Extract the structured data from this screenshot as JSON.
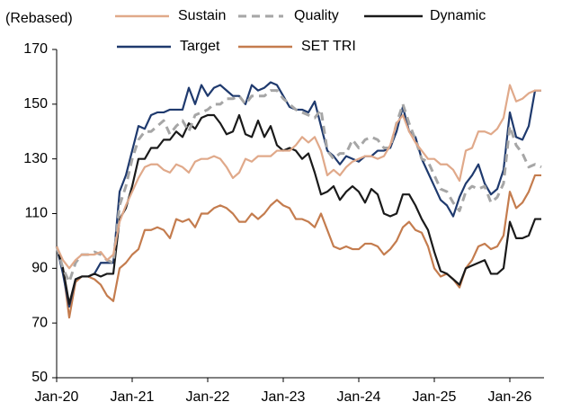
{
  "chart_data": {
    "type": "line",
    "y_axis_label": "(Rebased)",
    "legend": "top",
    "categories": [
      "Jan-20",
      null,
      null,
      null,
      null,
      null,
      null,
      null,
      null,
      null,
      null,
      null,
      "Jan-21",
      null,
      null,
      null,
      null,
      null,
      null,
      null,
      null,
      null,
      null,
      null,
      "Jan-22",
      null,
      null,
      null,
      null,
      null,
      null,
      null,
      null,
      null,
      null,
      null,
      "Jan-23",
      null,
      null,
      null,
      null,
      null,
      null,
      null,
      null,
      null,
      null,
      null,
      "Jan-24",
      null,
      null,
      null,
      null,
      null,
      null,
      null,
      null,
      null,
      null,
      null,
      "Jan-25",
      null,
      null,
      null,
      null,
      null,
      null,
      null,
      null,
      null,
      null,
      null,
      "Jan-26",
      null,
      null,
      null,
      null,
      null
    ],
    "ylim": [
      50,
      170
    ],
    "yticks": [
      50,
      70,
      90,
      110,
      130,
      150,
      170
    ],
    "grid": false,
    "series": [
      {
        "name": "Sustain",
        "color": "#e0a98a",
        "dash": "solid",
        "values": [
          98,
          93,
          90,
          93,
          95,
          95,
          95,
          96,
          93,
          95,
          107,
          113,
          118,
          123,
          127,
          128,
          128,
          126,
          125,
          128,
          127,
          125,
          129,
          130,
          130,
          131,
          130,
          127,
          123,
          125,
          130,
          129,
          131,
          131,
          131,
          133,
          133,
          133,
          135,
          138,
          136,
          138,
          133,
          124,
          126,
          124,
          127,
          129,
          130,
          131,
          131,
          130,
          131,
          135,
          143,
          146,
          140,
          136,
          133,
          130,
          130,
          128,
          128,
          126,
          122,
          133,
          134,
          140,
          140,
          139,
          141,
          145,
          157,
          151,
          152,
          154,
          155,
          155
        ]
      },
      {
        "name": "Quality",
        "color": "#a6a6a6",
        "dash": "dashed",
        "values": [
          98,
          90,
          85,
          92,
          95,
          95,
          96,
          95,
          93,
          92,
          113,
          120,
          130,
          137,
          140,
          140,
          142,
          144,
          139,
          142,
          144,
          140,
          146,
          147,
          148,
          150,
          150,
          152,
          152,
          153,
          150,
          153,
          153,
          153,
          155,
          155,
          152,
          150,
          148,
          147,
          146,
          145,
          148,
          133,
          130,
          132,
          132,
          137,
          134,
          137,
          138,
          137,
          134,
          134,
          143,
          150,
          143,
          137,
          130,
          129,
          124,
          119,
          118,
          114,
          111,
          118,
          120,
          119,
          120,
          114,
          116,
          121,
          142,
          135,
          132,
          127,
          128,
          127
        ]
      },
      {
        "name": "Dynamic",
        "color": "#1a1a1a",
        "dash": "solid",
        "values": [
          98,
          90,
          77,
          86,
          87,
          87,
          88,
          87,
          88,
          88,
          108,
          112,
          120,
          130,
          130,
          134,
          134,
          137,
          137,
          140,
          138,
          143,
          141,
          145,
          146,
          146,
          143,
          139,
          140,
          146,
          139,
          138,
          144,
          138,
          142,
          135,
          133,
          134,
          133,
          130,
          132,
          125,
          117,
          118,
          120,
          115,
          118,
          120,
          118,
          114,
          119,
          117,
          110,
          109,
          110,
          117,
          117,
          113,
          108,
          104,
          96,
          89,
          88,
          86,
          84,
          90,
          91,
          92,
          93,
          88,
          88,
          90,
          107,
          101,
          101,
          102,
          108,
          108
        ]
      },
      {
        "name": "Target",
        "color": "#1f3a6e",
        "dash": "solid",
        "values": [
          98,
          88,
          76,
          86,
          87,
          87,
          88,
          92,
          92,
          92,
          118,
          124,
          133,
          142,
          141,
          146,
          147,
          147,
          148,
          148,
          148,
          156,
          150,
          157,
          153,
          156,
          157,
          155,
          153,
          153,
          150,
          157,
          155,
          156,
          158,
          157,
          153,
          149,
          148,
          148,
          147,
          151,
          142,
          133,
          131,
          128,
          131,
          130,
          129,
          131,
          131,
          133,
          133,
          134,
          140,
          149,
          140,
          138,
          130,
          125,
          120,
          115,
          113,
          109,
          116,
          121,
          124,
          128,
          121,
          117,
          119,
          126,
          147,
          138,
          137,
          142,
          155,
          155
        ]
      },
      {
        "name": "SET TRI",
        "color": "#c47c4e",
        "dash": "solid",
        "values": [
          98,
          90,
          72,
          85,
          87,
          87,
          86,
          84,
          80,
          78,
          90,
          92,
          95,
          97,
          104,
          104,
          105,
          104,
          101,
          108,
          107,
          108,
          105,
          110,
          110,
          112,
          113,
          112,
          110,
          107,
          107,
          110,
          108,
          110,
          113,
          115,
          113,
          112,
          108,
          108,
          107,
          105,
          110,
          104,
          98,
          97,
          98,
          97,
          97,
          99,
          99,
          98,
          95,
          97,
          100,
          105,
          107,
          104,
          103,
          98,
          90,
          87,
          88,
          86,
          83,
          90,
          93,
          98,
          99,
          97,
          98,
          102,
          118,
          112,
          114,
          118,
          124,
          124
        ]
      }
    ]
  }
}
